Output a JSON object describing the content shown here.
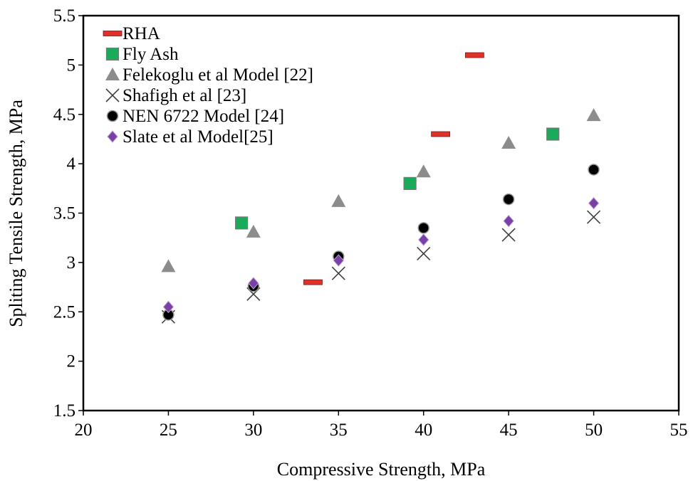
{
  "chart_data": {
    "type": "scatter",
    "title": "",
    "xlabel": "Compressive Strength, MPa",
    "ylabel": "Spliting Tensile Strength, MPa",
    "xlim": [
      20,
      55
    ],
    "ylim": [
      1.5,
      5.5
    ],
    "xticks": [
      "20",
      "25",
      "30",
      "35",
      "40",
      "45",
      "50",
      "55"
    ],
    "yticks": [
      "1.5",
      "2",
      "2.5",
      "3",
      "3.5",
      "4",
      "4.5",
      "5",
      "5.5"
    ],
    "grid": false,
    "legend_position": "top-left",
    "series": [
      {
        "name": "RHA",
        "marker": "dash",
        "color": "#e0302a",
        "points": [
          [
            33.5,
            2.8
          ],
          [
            41.0,
            4.3
          ],
          [
            43.0,
            5.1
          ]
        ]
      },
      {
        "name": "Fly Ash",
        "marker": "square",
        "color": "#1aab5a",
        "points": [
          [
            29.3,
            3.4
          ],
          [
            39.2,
            3.8
          ],
          [
            47.6,
            4.3
          ]
        ]
      },
      {
        "name": "Felekoglu et al Model [22]",
        "marker": "triangle",
        "color": "#8c8c8c",
        "points": [
          [
            25,
            2.96
          ],
          [
            30,
            3.31
          ],
          [
            35,
            3.62
          ],
          [
            40,
            3.92
          ],
          [
            45,
            4.21
          ],
          [
            50,
            4.49
          ]
        ]
      },
      {
        "name": "Shafigh et al [23]",
        "marker": "x",
        "color": "#404040",
        "points": [
          [
            25,
            2.45
          ],
          [
            30,
            2.68
          ],
          [
            35,
            2.89
          ],
          [
            40,
            3.09
          ],
          [
            45,
            3.28
          ],
          [
            50,
            3.46
          ]
        ]
      },
      {
        "name": "NEN 6722 Model [24]",
        "marker": "circle",
        "color": "#000000",
        "points": [
          [
            25,
            2.47
          ],
          [
            30,
            2.76
          ],
          [
            35,
            3.06
          ],
          [
            40,
            3.35
          ],
          [
            45,
            3.64
          ],
          [
            50,
            3.94
          ]
        ]
      },
      {
        "name": "Slate et al Model[25]",
        "marker": "diamond",
        "color": "#7b3fa8",
        "points": [
          [
            25,
            2.55
          ],
          [
            30,
            2.79
          ],
          [
            35,
            3.02
          ],
          [
            40,
            3.23
          ],
          [
            45,
            3.42
          ],
          [
            50,
            3.6
          ]
        ]
      }
    ]
  }
}
